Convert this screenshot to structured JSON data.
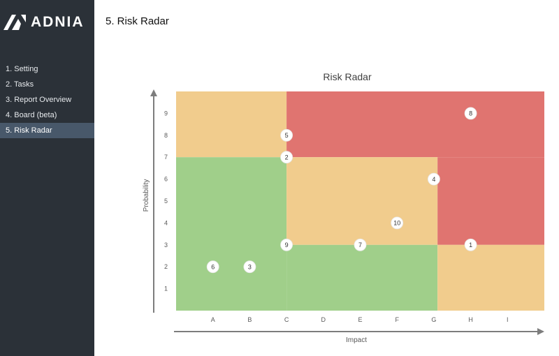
{
  "brand": {
    "name": "ADNIA"
  },
  "sidebar": {
    "items": [
      {
        "label": "1. Setting",
        "active": false
      },
      {
        "label": "2. Tasks",
        "active": false
      },
      {
        "label": "3. Report Overview",
        "active": false
      },
      {
        "label": "4. Board (beta)",
        "active": false
      },
      {
        "label": "5. Risk Radar",
        "active": true
      }
    ]
  },
  "page": {
    "title": "5. Risk Radar"
  },
  "colors": {
    "red": "#e07470",
    "amber": "#f1cc8d",
    "green": "#a0cf8a",
    "sidebar": "#2b3138",
    "active": "#48586a"
  },
  "chart_data": {
    "type": "scatter",
    "title": "Risk Radar",
    "xlabel": "Impact",
    "ylabel": "Probability",
    "categories": [
      "A",
      "B",
      "C",
      "D",
      "E",
      "F",
      "G",
      "H",
      "I"
    ],
    "y_ticks": [
      "1",
      "2",
      "3",
      "4",
      "5",
      "6",
      "7",
      "8",
      "9"
    ],
    "xlim": [
      0,
      10
    ],
    "ylim": [
      0,
      10
    ],
    "grid": false,
    "zones": [
      {
        "color": "amber",
        "x": [
          0,
          3
        ],
        "y": [
          7,
          10
        ]
      },
      {
        "color": "red",
        "x": [
          3,
          10
        ],
        "y": [
          7,
          10
        ]
      },
      {
        "color": "green",
        "x": [
          0,
          3
        ],
        "y": [
          0,
          7
        ]
      },
      {
        "color": "amber",
        "x": [
          3,
          7.1
        ],
        "y": [
          3,
          7
        ]
      },
      {
        "color": "red",
        "x": [
          7.1,
          10
        ],
        "y": [
          3,
          7
        ]
      },
      {
        "color": "green",
        "x": [
          3,
          7.1
        ],
        "y": [
          0,
          3
        ]
      },
      {
        "color": "amber",
        "x": [
          7.1,
          10
        ],
        "y": [
          0,
          3
        ]
      }
    ],
    "points": [
      {
        "label": "1",
        "x": 8,
        "y": 3
      },
      {
        "label": "2",
        "x": 3,
        "y": 7
      },
      {
        "label": "3",
        "x": 2,
        "y": 2
      },
      {
        "label": "4",
        "x": 7,
        "y": 6
      },
      {
        "label": "5",
        "x": 3,
        "y": 8
      },
      {
        "label": "6",
        "x": 1,
        "y": 2
      },
      {
        "label": "7",
        "x": 5,
        "y": 3
      },
      {
        "label": "8",
        "x": 8,
        "y": 9
      },
      {
        "label": "9",
        "x": 3,
        "y": 3
      },
      {
        "label": "10",
        "x": 6,
        "y": 4
      }
    ]
  }
}
